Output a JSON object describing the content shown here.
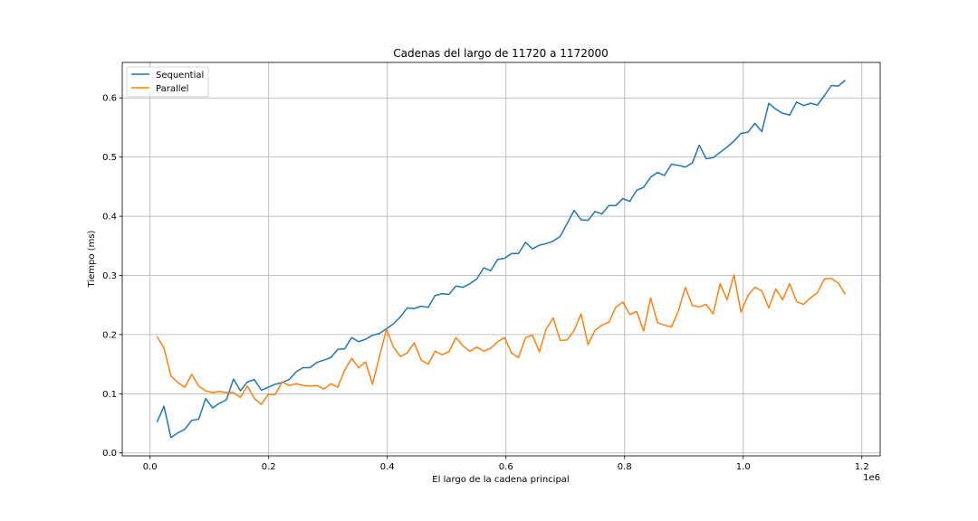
{
  "chart_data": {
    "type": "line",
    "title": "Cadenas del largo de 11720 a 1172000",
    "xlabel": "El largo de la cadena principal",
    "ylabel": "Tiempo (ms)",
    "x_offset_text": "1e6",
    "xlim": [
      -0.0469,
      1.2309
    ],
    "ylim": [
      -0.005,
      0.66
    ],
    "x_ticks": [
      0.0,
      0.2,
      0.4,
      0.6,
      0.8,
      1.0,
      1.2
    ],
    "x_tick_labels": [
      "0.0",
      "0.2",
      "0.4",
      "0.6",
      "0.8",
      "1.0",
      "1.2"
    ],
    "y_ticks": [
      0.0,
      0.1,
      0.2,
      0.3,
      0.4,
      0.5,
      0.6
    ],
    "y_tick_labels": [
      "0.0",
      "0.1",
      "0.2",
      "0.3",
      "0.4",
      "0.5",
      "0.6"
    ],
    "grid": true,
    "legend_position": "upper-left",
    "x_start": 0.01172,
    "x_step": 0.01172,
    "series": [
      {
        "name": "Sequential",
        "color": "#1f77b4",
        "values": [
          0.052,
          0.079,
          0.026,
          0.034,
          0.04,
          0.055,
          0.057,
          0.092,
          0.076,
          0.084,
          0.09,
          0.125,
          0.105,
          0.12,
          0.124,
          0.106,
          0.111,
          0.116,
          0.119,
          0.124,
          0.137,
          0.144,
          0.144,
          0.153,
          0.157,
          0.161,
          0.175,
          0.176,
          0.195,
          0.188,
          0.192,
          0.199,
          0.202,
          0.21,
          0.218,
          0.23,
          0.245,
          0.244,
          0.248,
          0.246,
          0.266,
          0.269,
          0.268,
          0.282,
          0.28,
          0.286,
          0.294,
          0.313,
          0.308,
          0.327,
          0.329,
          0.337,
          0.337,
          0.356,
          0.345,
          0.351,
          0.354,
          0.358,
          0.366,
          0.388,
          0.41,
          0.394,
          0.393,
          0.408,
          0.404,
          0.418,
          0.418,
          0.43,
          0.425,
          0.444,
          0.449,
          0.466,
          0.474,
          0.469,
          0.488,
          0.486,
          0.483,
          0.49,
          0.52,
          0.497,
          0.499,
          0.508,
          0.517,
          0.527,
          0.54,
          0.542,
          0.557,
          0.543,
          0.591,
          0.581,
          0.574,
          0.571,
          0.593,
          0.587,
          0.591,
          0.588,
          0.604,
          0.621,
          0.62,
          0.63
        ]
      },
      {
        "name": "Parallel",
        "color": "#ff7f0e",
        "values": [
          0.197,
          0.177,
          0.13,
          0.119,
          0.111,
          0.133,
          0.113,
          0.105,
          0.102,
          0.104,
          0.102,
          0.102,
          0.094,
          0.113,
          0.092,
          0.082,
          0.099,
          0.099,
          0.12,
          0.114,
          0.117,
          0.114,
          0.113,
          0.114,
          0.108,
          0.117,
          0.111,
          0.14,
          0.16,
          0.144,
          0.154,
          0.116,
          0.163,
          0.209,
          0.179,
          0.163,
          0.169,
          0.186,
          0.157,
          0.15,
          0.172,
          0.166,
          0.171,
          0.195,
          0.181,
          0.172,
          0.179,
          0.172,
          0.177,
          0.188,
          0.195,
          0.169,
          0.161,
          0.195,
          0.199,
          0.171,
          0.21,
          0.228,
          0.19,
          0.191,
          0.207,
          0.235,
          0.183,
          0.207,
          0.216,
          0.221,
          0.246,
          0.255,
          0.234,
          0.239,
          0.206,
          0.262,
          0.22,
          0.216,
          0.213,
          0.24,
          0.28,
          0.249,
          0.247,
          0.251,
          0.235,
          0.286,
          0.259,
          0.301,
          0.238,
          0.266,
          0.28,
          0.274,
          0.245,
          0.277,
          0.259,
          0.286,
          0.256,
          0.251,
          0.262,
          0.271,
          0.294,
          0.295,
          0.287,
          0.268
        ]
      }
    ]
  }
}
